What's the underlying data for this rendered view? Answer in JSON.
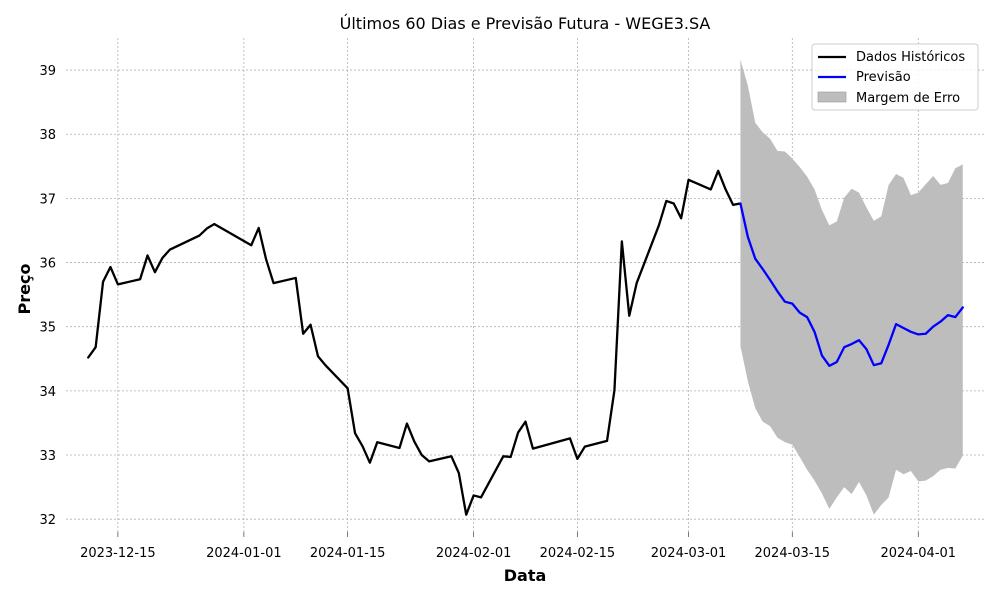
{
  "chart_data": {
    "type": "line",
    "title": "Últimos 60 Dias e Previsão Futura - WEGE3.SA",
    "xlabel": "Data",
    "ylabel": "Preço",
    "x_ticks": [
      "2023-12-15",
      "2024-01-01",
      "2024-01-15",
      "2024-02-01",
      "2024-02-15",
      "2024-03-01",
      "2024-03-15",
      "2024-04-01"
    ],
    "y_ticks": [
      32,
      33,
      34,
      35,
      36,
      37,
      38,
      39
    ],
    "xlim": [
      "2023-12-08",
      "2024-04-10"
    ],
    "ylim": [
      31.8,
      39.5
    ],
    "grid": true,
    "legend_position": "top-right",
    "colors": {
      "historical": "#000000",
      "forecast": "#0000ff",
      "error_band": "#bdbdbd"
    },
    "series": [
      {
        "name": "Dados Históricos",
        "x": [
          "2023-12-11",
          "2023-12-12",
          "2023-12-13",
          "2023-12-14",
          "2023-12-15",
          "2023-12-18",
          "2023-12-19",
          "2023-12-20",
          "2023-12-21",
          "2023-12-22",
          "2023-12-26",
          "2023-12-27",
          "2023-12-28",
          "2024-01-02",
          "2024-01-03",
          "2024-01-04",
          "2024-01-05",
          "2024-01-08",
          "2024-01-09",
          "2024-01-10",
          "2024-01-11",
          "2024-01-12",
          "2024-01-15",
          "2024-01-16",
          "2024-01-17",
          "2024-01-18",
          "2024-01-19",
          "2024-01-22",
          "2024-01-23",
          "2024-01-24",
          "2024-01-25",
          "2024-01-26",
          "2024-01-29",
          "2024-01-30",
          "2024-01-31",
          "2024-02-01",
          "2024-02-02",
          "2024-02-05",
          "2024-02-06",
          "2024-02-07",
          "2024-02-08",
          "2024-02-09",
          "2024-02-14",
          "2024-02-15",
          "2024-02-16",
          "2024-02-19",
          "2024-02-20",
          "2024-02-21",
          "2024-02-22",
          "2024-02-23",
          "2024-02-26",
          "2024-02-27",
          "2024-02-28",
          "2024-02-29",
          "2024-03-01",
          "2024-03-04",
          "2024-03-05",
          "2024-03-06",
          "2024-03-07",
          "2024-03-08"
        ],
        "values": [
          34.52,
          34.68,
          35.7,
          35.93,
          35.66,
          35.74,
          36.11,
          35.85,
          36.07,
          36.2,
          36.42,
          36.53,
          36.6,
          36.27,
          36.54,
          36.05,
          35.68,
          35.76,
          34.89,
          35.03,
          34.54,
          34.4,
          34.04,
          33.34,
          33.14,
          32.88,
          33.2,
          33.11,
          33.49,
          33.21,
          33.0,
          32.9,
          32.98,
          32.72,
          32.07,
          32.37,
          32.34,
          32.98,
          32.97,
          33.35,
          33.52,
          33.1,
          33.26,
          32.94,
          33.13,
          33.22,
          34.01,
          36.33,
          35.17,
          35.68,
          36.58,
          36.96,
          36.92,
          36.69,
          37.29,
          37.14,
          37.43,
          37.14,
          36.9,
          36.92
        ]
      },
      {
        "name": "Previsão",
        "x": [
          "2024-03-08",
          "2024-03-09",
          "2024-03-10",
          "2024-03-11",
          "2024-03-12",
          "2024-03-13",
          "2024-03-14",
          "2024-03-15",
          "2024-03-16",
          "2024-03-17",
          "2024-03-18",
          "2024-03-19",
          "2024-03-20",
          "2024-03-21",
          "2024-03-22",
          "2024-03-23",
          "2024-03-24",
          "2024-03-25",
          "2024-03-26",
          "2024-03-27",
          "2024-03-28",
          "2024-03-29",
          "2024-03-30",
          "2024-03-31",
          "2024-04-01",
          "2024-04-02",
          "2024-04-03",
          "2024-04-04",
          "2024-04-05",
          "2024-04-06",
          "2024-04-07"
        ],
        "values": [
          36.92,
          36.4,
          36.06,
          35.9,
          35.73,
          35.55,
          35.39,
          35.36,
          35.22,
          35.15,
          34.92,
          34.55,
          34.39,
          34.45,
          34.68,
          34.73,
          34.79,
          34.65,
          34.4,
          34.43,
          34.72,
          35.04,
          34.98,
          34.92,
          34.88,
          34.89,
          35.0,
          35.08,
          35.18,
          35.15,
          35.3
        ]
      }
    ],
    "error_band": {
      "name": "Margem de Erro",
      "x": [
        "2024-03-08",
        "2024-03-09",
        "2024-03-10",
        "2024-03-11",
        "2024-03-12",
        "2024-03-13",
        "2024-03-14",
        "2024-03-15",
        "2024-03-16",
        "2024-03-17",
        "2024-03-18",
        "2024-03-19",
        "2024-03-20",
        "2024-03-21",
        "2024-03-22",
        "2024-03-23",
        "2024-03-24",
        "2024-03-25",
        "2024-03-26",
        "2024-03-27",
        "2024-03-28",
        "2024-03-29",
        "2024-03-30",
        "2024-03-31",
        "2024-04-01",
        "2024-04-02",
        "2024-04-03",
        "2024-04-04",
        "2024-04-05",
        "2024-04-06",
        "2024-04-07"
      ],
      "upper": [
        39.16,
        38.76,
        38.18,
        38.03,
        37.93,
        37.74,
        37.73,
        37.62,
        37.49,
        37.34,
        37.14,
        36.82,
        36.58,
        36.64,
        37.01,
        37.15,
        37.09,
        36.86,
        36.65,
        36.72,
        37.21,
        37.38,
        37.32,
        37.05,
        37.09,
        37.22,
        37.35,
        37.21,
        37.24,
        37.47,
        37.53
      ],
      "lower": [
        34.7,
        34.15,
        33.73,
        33.52,
        33.45,
        33.27,
        33.2,
        33.16,
        32.97,
        32.77,
        32.6,
        32.4,
        32.16,
        32.34,
        32.5,
        32.39,
        32.58,
        32.37,
        32.07,
        32.22,
        32.34,
        32.77,
        32.7,
        32.75,
        32.59,
        32.6,
        32.67,
        32.77,
        32.8,
        32.79,
        32.99
      ]
    }
  }
}
